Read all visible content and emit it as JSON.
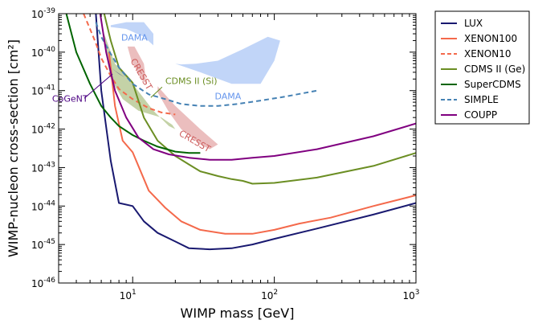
{
  "chart_data": {
    "type": "line",
    "xlabel": "WIMP mass [GeV]",
    "ylabel": "WIMP-nucleon cross-section [cm²]",
    "xscale": "log",
    "yscale": "log",
    "xlim": [
      3,
      1000
    ],
    "ylim": [
      1e-46,
      1e-39
    ],
    "x_ticks": [
      {
        "value": 10,
        "base": "10",
        "exp": "1"
      },
      {
        "value": 100,
        "base": "10",
        "exp": "2"
      },
      {
        "value": 1000,
        "base": "10",
        "exp": "3"
      }
    ],
    "y_ticks": [
      {
        "value": 1e-39,
        "base": "10",
        "exp": "-39"
      },
      {
        "value": 1e-40,
        "base": "10",
        "exp": "-40"
      },
      {
        "value": 1e-41,
        "base": "10",
        "exp": "-41"
      },
      {
        "value": 1e-42,
        "base": "10",
        "exp": "-42"
      },
      {
        "value": 1e-43,
        "base": "10",
        "exp": "-43"
      },
      {
        "value": 1e-44,
        "base": "10",
        "exp": "-44"
      },
      {
        "value": 1e-45,
        "base": "10",
        "exp": "-45"
      },
      {
        "value": 1e-46,
        "base": "10",
        "exp": "-46"
      }
    ],
    "legend_position": "outside-right",
    "series": [
      {
        "name": "LUX",
        "color": "#191970",
        "dash": "solid",
        "x": [
          5.5,
          6,
          7,
          8,
          10,
          12,
          15,
          20,
          25,
          35,
          50,
          70,
          100,
          200,
          500,
          1000
        ],
        "y": [
          1e-39,
          1e-41,
          1.5e-43,
          1.2e-44,
          1e-44,
          4e-45,
          2e-45,
          1.2e-45,
          8e-46,
          7.5e-46,
          8e-46,
          1e-45,
          1.4e-45,
          2.6e-45,
          6e-45,
          1.2e-44
        ]
      },
      {
        "name": "XENON100",
        "color": "#f4694b",
        "dash": "solid",
        "x": [
          6.8,
          7.5,
          8.5,
          10,
          13,
          17,
          22,
          30,
          45,
          70,
          100,
          150,
          250,
          500,
          1000
        ],
        "y": [
          1e-40,
          4e-42,
          5e-43,
          2.5e-43,
          2.5e-44,
          9e-45,
          4e-45,
          2.4e-45,
          1.9e-45,
          1.9e-45,
          2.4e-45,
          3.5e-45,
          5e-45,
          1e-44,
          1.9e-44
        ]
      },
      {
        "name": "XENON10",
        "color": "#f4694b",
        "dash": "dashed",
        "x": [
          4.5,
          5,
          5.5,
          6,
          7,
          8,
          10,
          13,
          16,
          20
        ],
        "y": [
          1e-39,
          4e-40,
          1.7e-40,
          7e-41,
          2.4e-41,
          1.1e-41,
          6e-42,
          3.5e-42,
          2.7e-42,
          2.4e-42
        ]
      },
      {
        "name": "CDMS II (Ge)",
        "color": "#6b8e23",
        "dash": "solid",
        "x": [
          6.3,
          7,
          8,
          10,
          12,
          15,
          20,
          25,
          30,
          40,
          50,
          60,
          70,
          100,
          200,
          500,
          1000
        ],
        "y": [
          1e-39,
          2e-40,
          4e-41,
          1.6e-41,
          2e-42,
          5e-43,
          2e-43,
          1.2e-43,
          8e-44,
          6e-44,
          5e-44,
          4.5e-44,
          3.8e-44,
          4e-44,
          5.5e-44,
          1.1e-43,
          2.4e-43
        ]
      },
      {
        "name": "SuperCDMS",
        "color": "#006400",
        "dash": "solid",
        "x": [
          3.4,
          4,
          5,
          6,
          7,
          8,
          10,
          12,
          15,
          20,
          25,
          30
        ],
        "y": [
          1e-39,
          1e-40,
          1.5e-41,
          4e-42,
          2e-42,
          1.2e-42,
          7e-43,
          5e-43,
          3.5e-43,
          2.6e-43,
          2.4e-43,
          2.4e-43
        ]
      },
      {
        "name": "SIMPLE",
        "color": "#4682b4",
        "dash": "dashed",
        "x": [
          5.5,
          6,
          7,
          8,
          10,
          13,
          17,
          22,
          30,
          40,
          55,
          80,
          120,
          200
        ],
        "y": [
          6e-40,
          2.5e-40,
          9e-41,
          4e-41,
          1.5e-41,
          8e-42,
          6e-42,
          4.5e-42,
          4e-42,
          4e-42,
          4.5e-42,
          5.5e-42,
          7e-42,
          1e-41
        ]
      },
      {
        "name": "COUPP",
        "color": "#800080",
        "dash": "solid",
        "x": [
          5.9,
          6.5,
          7.5,
          9,
          11,
          14,
          18,
          25,
          35,
          50,
          70,
          100,
          200,
          500,
          1000
        ],
        "y": [
          1e-39,
          1e-40,
          1e-41,
          2e-42,
          6e-43,
          3e-43,
          2.2e-43,
          1.8e-43,
          1.6e-43,
          1.6e-43,
          1.8e-43,
          2e-43,
          3e-43,
          6.5e-43,
          1.4e-42
        ]
      }
    ],
    "regions": [
      {
        "label": "DAMA",
        "color": "#6495ed",
        "alpha": 0.4,
        "x": [
          7,
          9,
          12,
          14,
          14,
          12,
          9,
          7
        ],
        "y": [
          5e-40,
          6e-40,
          6e-40,
          3e-40,
          1.5e-40,
          2.5e-40,
          4e-40,
          4.5e-40
        ],
        "label_at": [
          8.3,
          2e-40
        ],
        "label_color": "#6495ed",
        "rotate": 0
      },
      {
        "label": "DAMA",
        "color": "#6495ed",
        "alpha": 0.4,
        "x": [
          20,
          30,
          50,
          80,
          100,
          110,
          90,
          60,
          40,
          28,
          22
        ],
        "y": [
          5e-41,
          3e-41,
          1.5e-41,
          1.5e-41,
          6e-41,
          2e-40,
          2.5e-40,
          1.2e-40,
          6e-41,
          5e-41,
          4.8e-41
        ],
        "label_at": [
          38,
          6e-42
        ],
        "label_color": "#6495ed",
        "rotate": 0
      },
      {
        "label": "CRESST",
        "color": "#cd5c5c",
        "alpha": 0.4,
        "x": [
          9.2,
          10.3,
          12,
          12.5,
          11.5,
          9.8,
          9.3
        ],
        "y": [
          1.4e-40,
          1.4e-40,
          5e-41,
          1.5e-41,
          2e-41,
          6e-41,
          1.2e-40
        ],
        "label_at": [
          9.6,
          6e-41
        ],
        "label_color": "#cd5c5c",
        "rotate": 60
      },
      {
        "label": "CRESST",
        "color": "#cd5c5c",
        "alpha": 0.4,
        "x": [
          15,
          20,
          30,
          40,
          35,
          30,
          22,
          18,
          15
        ],
        "y": [
          1.3e-41,
          4e-42,
          1e-42,
          4e-43,
          3e-43,
          4e-43,
          1e-42,
          2.8e-42,
          9e-42
        ],
        "label_at": [
          21,
          7e-43
        ],
        "label_color": "#cd5c5c",
        "rotate": 30
      },
      {
        "label": "CDMS II (Si)",
        "color": "#6b8e23",
        "alpha": 0.4,
        "x": [
          6.3,
          7.5,
          10,
          14,
          18,
          20,
          19,
          16,
          11,
          8.5,
          7,
          6.3
        ],
        "y": [
          3e-40,
          5e-41,
          1.5e-41,
          3e-42,
          1.2e-42,
          1e-42,
          1.3e-42,
          2e-42,
          3e-42,
          6e-42,
          2e-41,
          1.6e-40
        ],
        "label_at": [
          17,
          1.5e-41
        ],
        "label_color": "#6b8e23",
        "rotate": 0
      },
      {
        "label": "CoGeNT",
        "color": "#483d8b",
        "alpha": 0.6,
        "x": [
          7,
          8,
          8.8,
          7.5,
          7
        ],
        "y": [
          4e-41,
          2.7e-41,
          2.2e-41,
          3.3e-41,
          4e-41
        ],
        "label_at": [
          2.7,
          5.2e-42
        ],
        "label_color": "#4b0082",
        "rotate": 0,
        "pointer_to": [
          7.2,
          2.7e-41
        ]
      }
    ]
  }
}
